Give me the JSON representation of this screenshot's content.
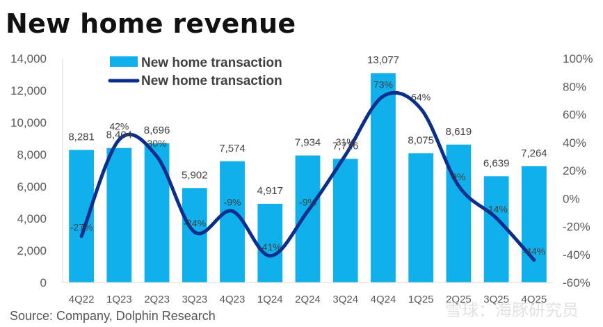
{
  "title": "New home revenue",
  "source": "Source: Company, Dolphin Research",
  "watermark": "雪球：海豚研究员",
  "chart_data": {
    "type": "bar",
    "categories": [
      "4Q22",
      "1Q23",
      "2Q23",
      "3Q23",
      "4Q23",
      "1Q24",
      "2Q24",
      "3Q24",
      "4Q24",
      "1Q25",
      "2Q25",
      "3Q25",
      "4Q25"
    ],
    "series": [
      {
        "name": "New home transaction",
        "type": "bar",
        "axis": "left",
        "color": "#0FB0EC",
        "values": [
          8281,
          8404,
          8696,
          5902,
          7574,
          4917,
          7934,
          7726,
          13077,
          8075,
          8619,
          6639,
          7264
        ],
        "labels": [
          "8,281",
          "8,404",
          "8,696",
          "5,902",
          "7,574",
          "4,917",
          "7,934",
          "7,726",
          "13,077",
          "8,075",
          "8,619",
          "6,639",
          "7,264"
        ]
      },
      {
        "name": "New home transaction",
        "type": "line",
        "axis": "right",
        "color": "#0B2E8C",
        "values": [
          -27,
          42,
          30,
          -24,
          -9,
          -41,
          -9,
          31,
          73,
          64,
          9,
          -14,
          -44
        ],
        "labels": [
          "-27%",
          "42%",
          "30%",
          "-24%",
          "-9%",
          "-41%",
          "-9%",
          "31%",
          "73%",
          "64%",
          "9%",
          "-14%",
          "-44%"
        ]
      }
    ],
    "y_left": {
      "ylim": [
        0,
        14000
      ],
      "ticks": [
        0,
        2000,
        4000,
        6000,
        8000,
        10000,
        12000,
        14000
      ],
      "tick_labels": [
        "0",
        "2,000",
        "4,000",
        "6,000",
        "8,000",
        "10,000",
        "12,000",
        "14,000"
      ]
    },
    "y_right": {
      "ylim": [
        -60,
        100
      ],
      "ticks": [
        -60,
        -40,
        -20,
        0,
        20,
        40,
        60,
        80,
        100
      ],
      "tick_labels": [
        "-60%",
        "-40%",
        "-20%",
        "0%",
        "20%",
        "40%",
        "60%",
        "80%",
        "100%"
      ]
    },
    "grid": false,
    "legend_position": "top-left"
  }
}
